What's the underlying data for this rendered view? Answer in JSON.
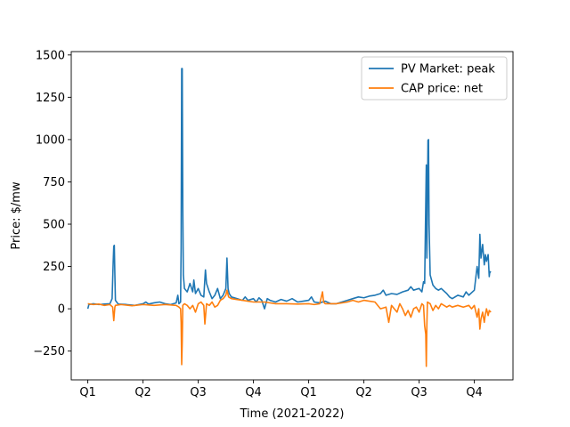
{
  "chart_data": {
    "type": "line",
    "title": "",
    "xlabel": "Time (2021-2022)",
    "ylabel": "Price: $/mw",
    "xlim": [
      -0.3,
      7.7
    ],
    "ylim": [
      -420,
      1520
    ],
    "x_ticks": [
      {
        "pos": 0,
        "label": "Q1"
      },
      {
        "pos": 1,
        "label": "Q2"
      },
      {
        "pos": 2,
        "label": "Q3"
      },
      {
        "pos": 3,
        "label": "Q4"
      },
      {
        "pos": 4,
        "label": "Q1"
      },
      {
        "pos": 5,
        "label": "Q2"
      },
      {
        "pos": 6,
        "label": "Q3"
      },
      {
        "pos": 7,
        "label": "Q4"
      }
    ],
    "y_ticks": [
      -250,
      0,
      250,
      500,
      750,
      1000,
      1250,
      1500
    ],
    "y_tick_labels": [
      "−250",
      "0",
      "250",
      "500",
      "750",
      "1000",
      "1250",
      "1500"
    ],
    "grid": false,
    "legend_position": "upper right",
    "series": [
      {
        "name": "PV Market: peak",
        "color": "#1f77b4",
        "points": [
          [
            0.0,
            0
          ],
          [
            0.02,
            25
          ],
          [
            0.1,
            30
          ],
          [
            0.2,
            25
          ],
          [
            0.3,
            28
          ],
          [
            0.4,
            30
          ],
          [
            0.44,
            60
          ],
          [
            0.46,
            280
          ],
          [
            0.47,
            370
          ],
          [
            0.48,
            375
          ],
          [
            0.49,
            200
          ],
          [
            0.5,
            50
          ],
          [
            0.55,
            28
          ],
          [
            0.7,
            25
          ],
          [
            0.85,
            20
          ],
          [
            1.0,
            30
          ],
          [
            1.05,
            40
          ],
          [
            1.1,
            28
          ],
          [
            1.2,
            35
          ],
          [
            1.3,
            40
          ],
          [
            1.4,
            30
          ],
          [
            1.5,
            25
          ],
          [
            1.6,
            35
          ],
          [
            1.63,
            80
          ],
          [
            1.65,
            30
          ],
          [
            1.68,
            40
          ],
          [
            1.69,
            360
          ],
          [
            1.7,
            1420
          ],
          [
            1.71,
            1420
          ],
          [
            1.72,
            600
          ],
          [
            1.73,
            200
          ],
          [
            1.75,
            120
          ],
          [
            1.8,
            100
          ],
          [
            1.85,
            150
          ],
          [
            1.9,
            100
          ],
          [
            1.92,
            170
          ],
          [
            1.95,
            90
          ],
          [
            2.0,
            120
          ],
          [
            2.05,
            80
          ],
          [
            2.1,
            70
          ],
          [
            2.13,
            230
          ],
          [
            2.15,
            150
          ],
          [
            2.2,
            100
          ],
          [
            2.25,
            60
          ],
          [
            2.3,
            80
          ],
          [
            2.35,
            120
          ],
          [
            2.4,
            60
          ],
          [
            2.45,
            80
          ],
          [
            2.5,
            120
          ],
          [
            2.52,
            300
          ],
          [
            2.54,
            120
          ],
          [
            2.56,
            90
          ],
          [
            2.6,
            70
          ],
          [
            2.7,
            60
          ],
          [
            2.8,
            50
          ],
          [
            2.85,
            70
          ],
          [
            2.9,
            50
          ],
          [
            3.0,
            60
          ],
          [
            3.05,
            40
          ],
          [
            3.1,
            65
          ],
          [
            3.15,
            50
          ],
          [
            3.2,
            0
          ],
          [
            3.25,
            60
          ],
          [
            3.3,
            50
          ],
          [
            3.4,
            40
          ],
          [
            3.5,
            55
          ],
          [
            3.6,
            45
          ],
          [
            3.7,
            60
          ],
          [
            3.8,
            40
          ],
          [
            3.9,
            45
          ],
          [
            4.0,
            50
          ],
          [
            4.05,
            70
          ],
          [
            4.1,
            40
          ],
          [
            4.2,
            35
          ],
          [
            4.3,
            45
          ],
          [
            4.4,
            30
          ],
          [
            4.5,
            30
          ],
          [
            4.6,
            40
          ],
          [
            4.7,
            50
          ],
          [
            4.8,
            60
          ],
          [
            4.9,
            70
          ],
          [
            5.0,
            65
          ],
          [
            5.1,
            75
          ],
          [
            5.2,
            80
          ],
          [
            5.3,
            90
          ],
          [
            5.35,
            110
          ],
          [
            5.4,
            80
          ],
          [
            5.5,
            90
          ],
          [
            5.6,
            85
          ],
          [
            5.7,
            100
          ],
          [
            5.8,
            110
          ],
          [
            5.85,
            130
          ],
          [
            5.9,
            110
          ],
          [
            6.0,
            120
          ],
          [
            6.05,
            100
          ],
          [
            6.08,
            160
          ],
          [
            6.1,
            150
          ],
          [
            6.13,
            850
          ],
          [
            6.14,
            300
          ],
          [
            6.15,
            600
          ],
          [
            6.16,
            995
          ],
          [
            6.17,
            1000
          ],
          [
            6.18,
            500
          ],
          [
            6.2,
            200
          ],
          [
            6.25,
            140
          ],
          [
            6.3,
            120
          ],
          [
            6.35,
            110
          ],
          [
            6.4,
            120
          ],
          [
            6.5,
            90
          ],
          [
            6.55,
            70
          ],
          [
            6.6,
            60
          ],
          [
            6.7,
            80
          ],
          [
            6.8,
            70
          ],
          [
            6.85,
            100
          ],
          [
            6.9,
            80
          ],
          [
            7.0,
            110
          ],
          [
            7.05,
            250
          ],
          [
            7.08,
            180
          ],
          [
            7.1,
            440
          ],
          [
            7.12,
            300
          ],
          [
            7.15,
            380
          ],
          [
            7.18,
            260
          ],
          [
            7.2,
            320
          ],
          [
            7.22,
            280
          ],
          [
            7.25,
            320
          ],
          [
            7.27,
            190
          ],
          [
            7.28,
            220
          ],
          [
            7.3,
            215
          ]
        ]
      },
      {
        "name": "CAP price: net",
        "color": "#ff7f0e",
        "points": [
          [
            0.0,
            30
          ],
          [
            0.1,
            25
          ],
          [
            0.2,
            28
          ],
          [
            0.3,
            20
          ],
          [
            0.4,
            25
          ],
          [
            0.45,
            10
          ],
          [
            0.47,
            -70
          ],
          [
            0.49,
            10
          ],
          [
            0.5,
            20
          ],
          [
            0.6,
            25
          ],
          [
            0.8,
            18
          ],
          [
            1.0,
            25
          ],
          [
            1.2,
            20
          ],
          [
            1.4,
            25
          ],
          [
            1.6,
            20
          ],
          [
            1.65,
            10
          ],
          [
            1.68,
            0
          ],
          [
            1.69,
            -80
          ],
          [
            1.7,
            -330
          ],
          [
            1.71,
            -200
          ],
          [
            1.72,
            20
          ],
          [
            1.75,
            30
          ],
          [
            1.8,
            20
          ],
          [
            1.85,
            0
          ],
          [
            1.9,
            20
          ],
          [
            1.95,
            -20
          ],
          [
            2.0,
            30
          ],
          [
            2.05,
            40
          ],
          [
            2.1,
            20
          ],
          [
            2.12,
            -90
          ],
          [
            2.15,
            30
          ],
          [
            2.2,
            20
          ],
          [
            2.25,
            40
          ],
          [
            2.3,
            10
          ],
          [
            2.35,
            20
          ],
          [
            2.4,
            50
          ],
          [
            2.45,
            60
          ],
          [
            2.5,
            80
          ],
          [
            2.52,
            110
          ],
          [
            2.55,
            70
          ],
          [
            2.6,
            60
          ],
          [
            2.7,
            55
          ],
          [
            2.8,
            50
          ],
          [
            2.9,
            45
          ],
          [
            3.0,
            40
          ],
          [
            3.2,
            40
          ],
          [
            3.4,
            30
          ],
          [
            3.6,
            30
          ],
          [
            3.8,
            28
          ],
          [
            4.0,
            30
          ],
          [
            4.1,
            25
          ],
          [
            4.2,
            30
          ],
          [
            4.25,
            100
          ],
          [
            4.27,
            40
          ],
          [
            4.3,
            30
          ],
          [
            4.5,
            30
          ],
          [
            4.7,
            40
          ],
          [
            4.8,
            50
          ],
          [
            4.9,
            40
          ],
          [
            5.0,
            50
          ],
          [
            5.1,
            45
          ],
          [
            5.2,
            40
          ],
          [
            5.3,
            0
          ],
          [
            5.4,
            10
          ],
          [
            5.45,
            -80
          ],
          [
            5.5,
            20
          ],
          [
            5.55,
            0
          ],
          [
            5.6,
            -20
          ],
          [
            5.65,
            30
          ],
          [
            5.7,
            0
          ],
          [
            5.75,
            -40
          ],
          [
            5.8,
            -10
          ],
          [
            5.85,
            -50
          ],
          [
            5.9,
            0
          ],
          [
            5.95,
            10
          ],
          [
            6.0,
            -20
          ],
          [
            6.05,
            30
          ],
          [
            6.08,
            20
          ],
          [
            6.1,
            -100
          ],
          [
            6.12,
            -150
          ],
          [
            6.13,
            -340
          ],
          [
            6.14,
            -100
          ],
          [
            6.15,
            40
          ],
          [
            6.2,
            30
          ],
          [
            6.25,
            -10
          ],
          [
            6.3,
            20
          ],
          [
            6.35,
            0
          ],
          [
            6.4,
            30
          ],
          [
            6.5,
            10
          ],
          [
            6.55,
            20
          ],
          [
            6.6,
            10
          ],
          [
            6.7,
            20
          ],
          [
            6.8,
            10
          ],
          [
            6.9,
            20
          ],
          [
            6.95,
            0
          ],
          [
            7.0,
            20
          ],
          [
            7.05,
            -50
          ],
          [
            7.08,
            0
          ],
          [
            7.1,
            -120
          ],
          [
            7.12,
            -60
          ],
          [
            7.15,
            -20
          ],
          [
            7.18,
            -80
          ],
          [
            7.2,
            -30
          ],
          [
            7.22,
            0
          ],
          [
            7.25,
            -40
          ],
          [
            7.27,
            -10
          ],
          [
            7.3,
            -20
          ]
        ]
      }
    ]
  }
}
